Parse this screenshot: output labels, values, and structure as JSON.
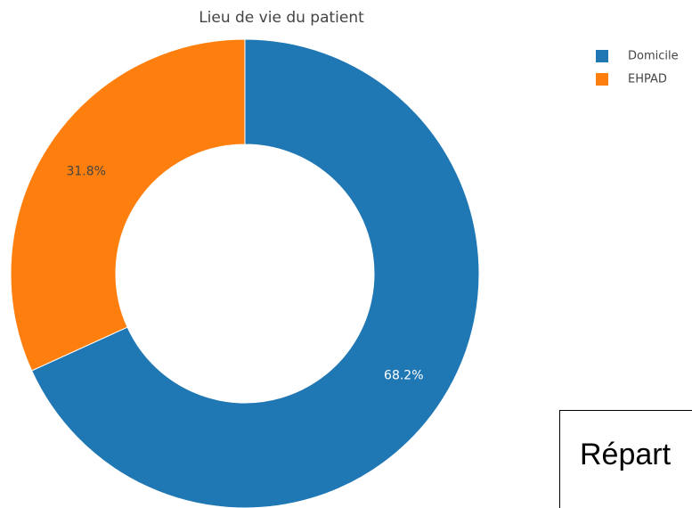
{
  "chart_data": {
    "type": "donut",
    "title": "Lieu de vie du patient",
    "categories": [
      "Domicile",
      "EHPAD"
    ],
    "values": [
      68.2,
      31.8
    ],
    "value_labels": [
      "68.2%",
      "31.8%"
    ],
    "colors": [
      "#1f77b4",
      "#ff7f0e"
    ],
    "legend": "top-right"
  },
  "annotation": "Répart"
}
